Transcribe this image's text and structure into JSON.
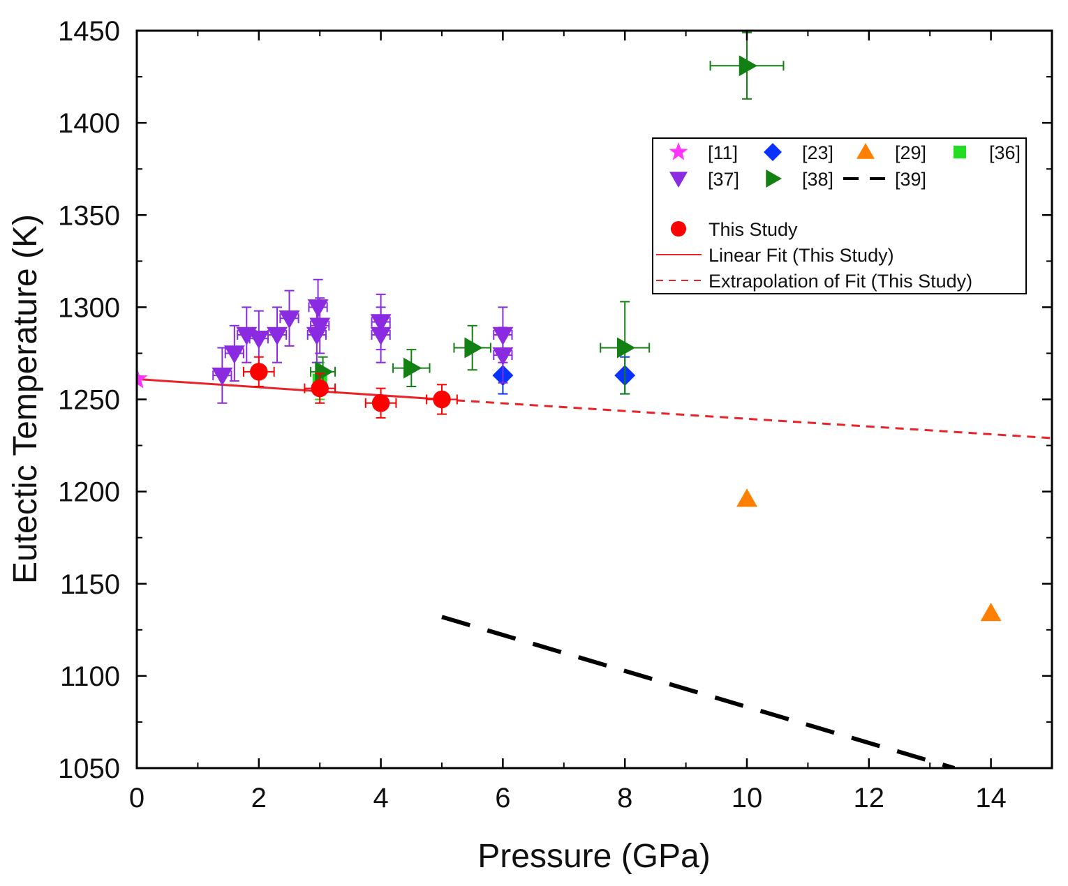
{
  "chart_data": {
    "type": "scatter",
    "title": "",
    "xlabel": "Pressure (GPa)",
    "ylabel": "Eutectic Temperature (K)",
    "xlim": [
      0,
      15
    ],
    "ylim": [
      1050,
      1450
    ],
    "xticks": [
      0,
      2,
      4,
      6,
      8,
      10,
      12,
      14
    ],
    "yticks": [
      1050,
      1100,
      1150,
      1200,
      1250,
      1300,
      1350,
      1400,
      1450
    ],
    "grid": false,
    "legend_position": "top-right",
    "series": [
      {
        "name": "[11]",
        "marker": "star",
        "color": "#ff33ff",
        "points": [
          {
            "x": 0,
            "y": 1261
          }
        ]
      },
      {
        "name": "[23]",
        "marker": "diamond",
        "color": "#0a32ff",
        "points": [
          {
            "x": 6,
            "y": 1263,
            "yerr": 10
          },
          {
            "x": 8,
            "y": 1263,
            "yerr": 10
          }
        ]
      },
      {
        "name": "[29]",
        "marker": "triangle-up",
        "color": "#ff8000",
        "points": [
          {
            "x": 10,
            "y": 1196
          },
          {
            "x": 14,
            "y": 1134
          }
        ]
      },
      {
        "name": "[36]",
        "marker": "square",
        "color": "#22dd22",
        "points": [
          {
            "x": 3,
            "y": 1260,
            "yerr": 10
          }
        ]
      },
      {
        "name": "[37]",
        "marker": "triangle-down",
        "color": "#8a2be2",
        "points": [
          {
            "x": 1.4,
            "y": 1263,
            "xerr": 0.15,
            "yerr": 15
          },
          {
            "x": 1.6,
            "y": 1275,
            "xerr": 0.15,
            "yerr": 15
          },
          {
            "x": 1.8,
            "y": 1285,
            "xerr": 0.15,
            "yerr": 15
          },
          {
            "x": 2.0,
            "y": 1283,
            "xerr": 0.15,
            "yerr": 15
          },
          {
            "x": 2.3,
            "y": 1285,
            "xerr": 0.15,
            "yerr": 15
          },
          {
            "x": 2.5,
            "y": 1294,
            "xerr": 0.15,
            "yerr": 15
          },
          {
            "x": 2.97,
            "y": 1300,
            "xerr": 0.15,
            "yerr": 15
          },
          {
            "x": 3.0,
            "y": 1290,
            "xerr": 0.15,
            "yerr": 15
          },
          {
            "x": 2.95,
            "y": 1285,
            "xerr": 0.15,
            "yerr": 15
          },
          {
            "x": 4.0,
            "y": 1292,
            "xerr": 0.15,
            "yerr": 15
          },
          {
            "x": 4.0,
            "y": 1285,
            "xerr": 0.15,
            "yerr": 15
          },
          {
            "x": 6.0,
            "y": 1285,
            "xerr": 0.15,
            "yerr": 15
          },
          {
            "x": 6.0,
            "y": 1274,
            "xerr": 0.15,
            "yerr": 15
          }
        ]
      },
      {
        "name": "[38]",
        "marker": "triangle-right",
        "color": "#138013",
        "points": [
          {
            "x": 3.05,
            "y": 1265,
            "xerr": 0.2,
            "yerr": 8
          },
          {
            "x": 4.5,
            "y": 1267,
            "xerr": 0.3,
            "yerr": 10
          },
          {
            "x": 5.5,
            "y": 1278,
            "xerr": 0.3,
            "yerr": 12
          },
          {
            "x": 8.0,
            "y": 1278,
            "xerr": 0.4,
            "yerr": 25
          },
          {
            "x": 10.0,
            "y": 1431,
            "xerr": 0.6,
            "yerr": 18
          }
        ]
      },
      {
        "name": "[39]",
        "marker": "line-dash",
        "color": "#000000",
        "line": [
          {
            "x": 5.0,
            "y": 1132
          },
          {
            "x": 13.4,
            "y": 1050
          }
        ]
      },
      {
        "name": "This Study",
        "marker": "circle",
        "color": "#ff0000",
        "points": [
          {
            "x": 2.0,
            "y": 1265,
            "xerr": 0.25,
            "yerr": 8
          },
          {
            "x": 3.0,
            "y": 1256,
            "xerr": 0.25,
            "yerr": 8
          },
          {
            "x": 4.0,
            "y": 1248,
            "xerr": 0.25,
            "yerr": 8
          },
          {
            "x": 5.0,
            "y": 1250,
            "xerr": 0.25,
            "yerr": 8
          }
        ]
      },
      {
        "name": "Linear Fit (This Study)",
        "marker": "line-solid",
        "color": "#e8232a",
        "line": [
          {
            "x": 0,
            "y": 1261
          },
          {
            "x": 5.0,
            "y": 1250
          }
        ]
      },
      {
        "name": "Extrapolation of Fit (This Study)",
        "marker": "line-shortdash",
        "color": "#e8232a",
        "line": [
          {
            "x": 5.0,
            "y": 1250
          },
          {
            "x": 15.0,
            "y": 1229
          }
        ]
      }
    ]
  }
}
